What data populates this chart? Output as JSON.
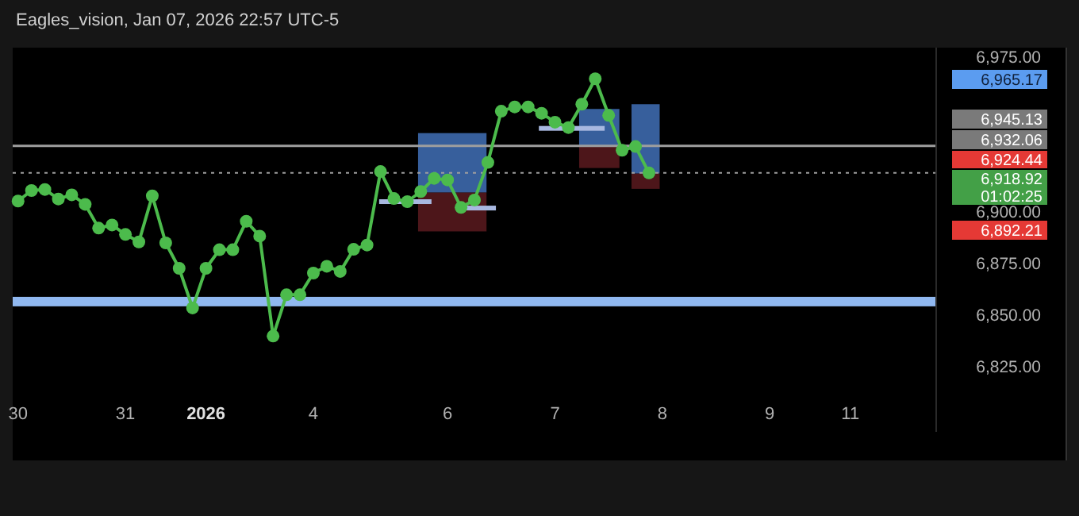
{
  "chart_data": {
    "type": "line",
    "title": "Eagles_vision, Jan 07, 2026 22:57 UTC-5",
    "categories": [
      "30",
      null,
      null,
      null,
      null,
      null,
      null,
      null,
      "31",
      null,
      null,
      null,
      null,
      null,
      "2026",
      null,
      null,
      null,
      null,
      null,
      null,
      null,
      "4",
      null,
      null,
      null,
      null,
      null,
      null,
      null,
      null,
      null,
      "6",
      null,
      null,
      null,
      null,
      null,
      null,
      null,
      "7",
      null,
      null,
      null,
      null,
      null,
      null,
      null,
      "8",
      null,
      null,
      null,
      null,
      null,
      null,
      null,
      "9",
      null,
      null,
      null,
      null,
      null,
      "11",
      null,
      null,
      null,
      null,
      null,
      null
    ],
    "series": [
      {
        "color": "#4cbb4c",
        "values": [
          6905.3,
          6910.4,
          6910.9,
          6906.3,
          6908.3,
          6903.7,
          6892.2,
          6893.7,
          6889.1,
          6885.5,
          6907.8,
          6885.0,
          6872.7,
          6853.5,
          6872.7,
          6881.7,
          6881.7,
          6895.5,
          6888.3,
          6839.9,
          6859.9,
          6859.9,
          6870.4,
          6873.7,
          6871.2,
          6881.9,
          6884.0,
          6919.6,
          6906.5,
          6905.0,
          6909.9,
          6916.3,
          6915.5,
          6902.2,
          6905.8,
          6924.0,
          6948.8,
          6950.9,
          6950.9,
          6947.8,
          6943.5,
          6940.9,
          6952.2,
          6964.5,
          6946.8,
          6929.9,
          6931.7,
          6918.9,
          null,
          null,
          null,
          null,
          null,
          null,
          null,
          null,
          null,
          null,
          null,
          null,
          null,
          null,
          null,
          null,
          null,
          null,
          null,
          null,
          null
        ]
      }
    ],
    "marker": "circle",
    "ylim": [
      6793.5,
      6979.6
    ],
    "yticks": [
      {
        "value": 6825,
        "label": "6,825.00"
      },
      {
        "value": 6850,
        "label": "6,850.00"
      },
      {
        "value": 6875,
        "label": "6,875.00"
      },
      {
        "value": 6900,
        "label": "6,900.00"
      },
      {
        "value": 6975,
        "label": "6,975.00"
      }
    ],
    "grid": false,
    "ref_lines": [
      {
        "axis": "y",
        "value": 6932.06,
        "label": "6,932.06",
        "color": "#9e9e9e",
        "line_style": "solid"
      },
      {
        "axis": "y",
        "value": 6918.92,
        "label": "6,918.92",
        "color": "#9e9e9e",
        "line_style": "dotted"
      }
    ],
    "bands": [
      {
        "axis": "y",
        "from": 6854.3,
        "to": 6858.9,
        "color": "#90b8f0"
      }
    ],
    "annotations": [
      "6,965.17",
      "6,945.13",
      "6,924.44",
      "01:02:25",
      "6,892.21"
    ]
  }
}
